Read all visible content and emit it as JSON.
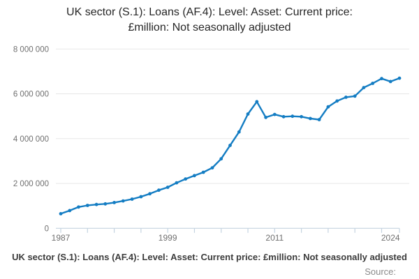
{
  "title": {
    "line1": "UK sector (S.1): Loans (AF.4): Level: Asset: Current price:",
    "line2": "£million: Not seasonally adjusted"
  },
  "chart_data": {
    "type": "line",
    "title": "UK sector (S.1): Loans (AF.4): Level: Asset: Current price: £million: Not seasonally adjusted",
    "x": [
      1987,
      1988,
      1989,
      1990,
      1991,
      1992,
      1993,
      1994,
      1995,
      1996,
      1997,
      1998,
      1999,
      2000,
      2001,
      2002,
      2003,
      2004,
      2005,
      2006,
      2007,
      2008,
      2009,
      2010,
      2011,
      2012,
      2013,
      2014,
      2015,
      2016,
      2017,
      2018,
      2019,
      2020,
      2021,
      2022,
      2023,
      2024,
      2025
    ],
    "series": [
      {
        "name": "UK sector (S.1): Loans (AF.4): Level: Asset: Current price: £million: Not seasonally adjusted",
        "values": [
          650000,
          790000,
          950000,
          1020000,
          1060000,
          1090000,
          1150000,
          1220000,
          1300000,
          1410000,
          1540000,
          1700000,
          1830000,
          2030000,
          2200000,
          2350000,
          2500000,
          2700000,
          3100000,
          3700000,
          4300000,
          5100000,
          5650000,
          4950000,
          5080000,
          4980000,
          5000000,
          4980000,
          4900000,
          4850000,
          5420000,
          5680000,
          5850000,
          5900000,
          6280000,
          6470000,
          6680000,
          6550000,
          6700000
        ]
      }
    ],
    "xlabel": "",
    "ylabel": "",
    "xlim": [
      1987,
      2025
    ],
    "ylim": [
      0,
      8000000
    ],
    "y_ticks": [
      0,
      2000000,
      4000000,
      6000000,
      8000000
    ],
    "y_tick_labels": [
      "0",
      "2 000 000",
      "4 000 000",
      "6 000 000",
      "8 000 000"
    ],
    "x_minor_tick_years": [
      1987,
      1990,
      1993,
      1996,
      1999,
      2002,
      2005,
      2008,
      2011,
      2014,
      2017,
      2020,
      2023,
      2025
    ],
    "x_labeled_ticks": [
      {
        "year": 1987,
        "label": "1987"
      },
      {
        "year": 1999,
        "label": "1999"
      },
      {
        "year": 2011,
        "label": "2011"
      },
      {
        "year": 2024,
        "label": "2024"
      }
    ],
    "grid": "horizontal",
    "legend_position": "bottom",
    "line_color": "#147dc3",
    "marker": "circle"
  },
  "footer": {
    "source_label": "Source:"
  },
  "colors": {
    "line": "#147dc3",
    "gridline": "#e7e7e7",
    "axis": "#c4d3e0",
    "tick_text": "#6f6f6f",
    "title_text": "#262626",
    "legend_text": "#3c3c3c",
    "source_text": "#8a8a8a",
    "background": "#ffffff"
  }
}
